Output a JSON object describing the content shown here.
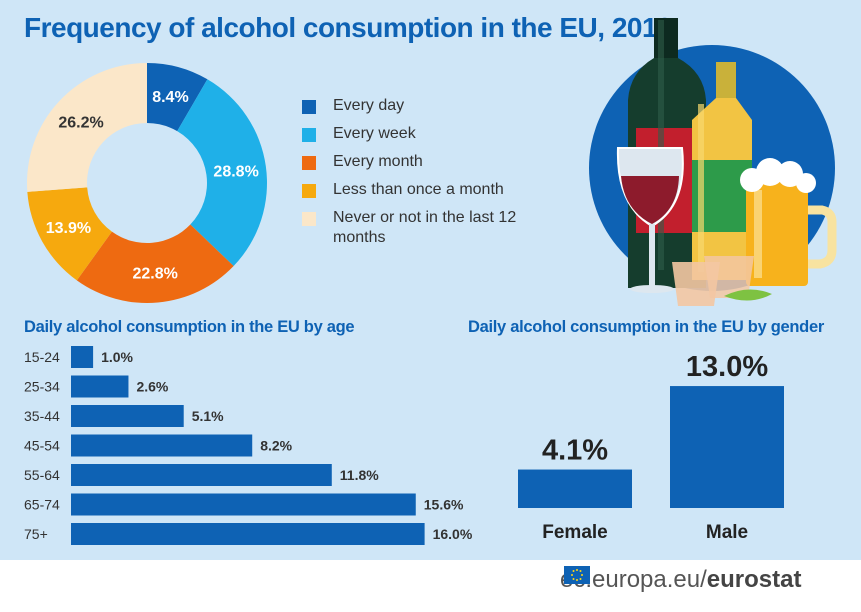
{
  "header": {
    "title": "Frequency of alcohol consumption in the EU, 2019"
  },
  "colors": {
    "every_day": "#0e62b4",
    "every_week": "#1fb0e8",
    "every_month": "#ee6a11",
    "less_than_monthly": "#f6a90e",
    "never": "#fbe7c9",
    "bar": "#0e62b4"
  },
  "chart_data": [
    {
      "type": "pie",
      "title": "Frequency of alcohol consumption in the EU, 2019",
      "donut": true,
      "categories": [
        "Every day",
        "Every week",
        "Every month",
        "Less than once a month",
        "Never or not in the last 12 months"
      ],
      "values": [
        8.4,
        28.8,
        22.8,
        13.9,
        26.2
      ],
      "value_labels": [
        "8.4%",
        "28.8%",
        "22.8%",
        "13.9%",
        "26.2%"
      ],
      "colors": [
        "#0e62b4",
        "#1fb0e8",
        "#ee6a11",
        "#f6a90e",
        "#fbe7c9"
      ],
      "legend": "right"
    },
    {
      "type": "bar",
      "orientation": "horizontal",
      "title": "Daily alcohol consumption in the EU by age",
      "categories": [
        "15-24",
        "25-34",
        "35-44",
        "45-54",
        "55-64",
        "65-74",
        "75+"
      ],
      "values": [
        1.0,
        2.6,
        5.1,
        8.2,
        11.8,
        15.6,
        16.0
      ],
      "value_labels": [
        "1.0%",
        "2.6%",
        "5.1%",
        "8.2%",
        "11.8%",
        "15.6%",
        "16.0%"
      ],
      "color": "#0e62b4"
    },
    {
      "type": "bar",
      "title": "Daily alcohol consumption in the EU by gender",
      "categories": [
        "Female",
        "Male"
      ],
      "values": [
        4.1,
        13.0
      ],
      "value_labels": [
        "4.1%",
        "13.0%"
      ],
      "color": "#0e62b4"
    }
  ],
  "legend": {
    "items": [
      {
        "label": "Every day",
        "color": "#0e62b4"
      },
      {
        "label": "Every week",
        "color": "#1fb0e8"
      },
      {
        "label": "Every month",
        "color": "#ee6a11"
      },
      {
        "label": "Less than once a month",
        "color": "#f6a90e"
      },
      {
        "label": "Never or not in the last 12 months",
        "color": "#fbe7c9"
      }
    ]
  },
  "footer": {
    "site": "ec.europa.eu/",
    "brand": "eurostat"
  }
}
